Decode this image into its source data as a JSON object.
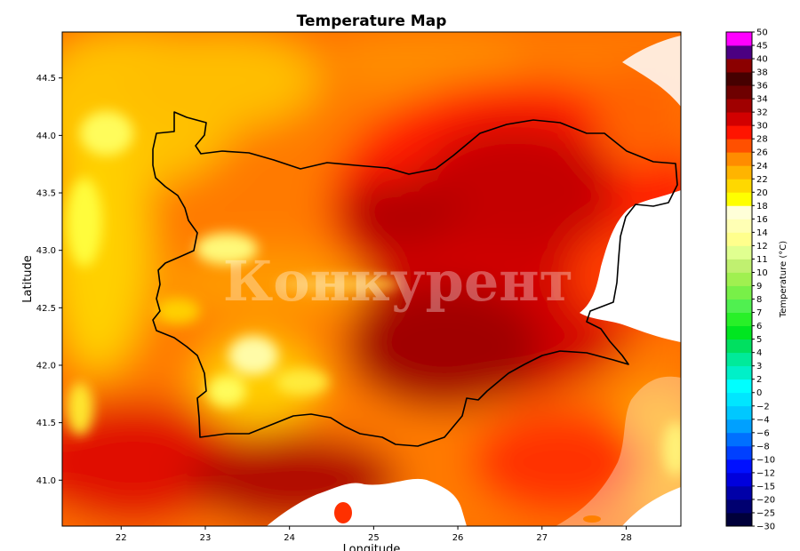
{
  "chart_data": {
    "type": "heatmap",
    "title": "Temperature Map",
    "xlabel": "Longitude",
    "ylabel": "Latitude",
    "xlim": [
      21.3,
      28.65
    ],
    "ylim": [
      40.6,
      44.9
    ],
    "xticks": [
      22,
      23,
      24,
      25,
      26,
      27,
      28
    ],
    "yticks": [
      41.0,
      41.5,
      42.0,
      42.5,
      43.0,
      43.5,
      44.0,
      44.5
    ],
    "colorbar": {
      "label": "Temperature (°C)",
      "levels": [
        -30,
        -25,
        -20,
        -15,
        -12,
        -10,
        -8,
        -6,
        -4,
        -2,
        0,
        2,
        3,
        4,
        5,
        6,
        7,
        8,
        9,
        10,
        11,
        12,
        14,
        16,
        18,
        20,
        22,
        24,
        26,
        28,
        30,
        32,
        34,
        36,
        38,
        40,
        45,
        50
      ],
      "colors": [
        "#00003a",
        "#000070",
        "#0000a8",
        "#0000dc",
        "#0010ff",
        "#0040ff",
        "#0070ff",
        "#00a0ff",
        "#00c8ff",
        "#00e6ff",
        "#00ffff",
        "#00f0c8",
        "#00ea9a",
        "#00e060",
        "#00e620",
        "#28f028",
        "#50f050",
        "#78f048",
        "#a0f050",
        "#c0f070",
        "#e0ff90",
        "#ffff8c",
        "#ffffb4",
        "#ffffd8",
        "#ffff00",
        "#ffd800",
        "#ffb400",
        "#ff8c00",
        "#ff5000",
        "#ff1400",
        "#d20000",
        "#a00000",
        "#6e0000",
        "#460000",
        "#8b0000",
        "#4b0082",
        "#ff00ff"
      ]
    },
    "field": {
      "description_points": [
        {
          "lon": 27.0,
          "lat": 43.4,
          "temp": 33
        },
        {
          "lon": 26.2,
          "lat": 42.4,
          "temp": 35
        },
        {
          "lon": 25.3,
          "lat": 42.6,
          "temp": 31
        },
        {
          "lon": 24.5,
          "lat": 42.2,
          "temp": 28
        },
        {
          "lon": 23.4,
          "lat": 42.6,
          "temp": 19
        },
        {
          "lon": 23.3,
          "lat": 41.8,
          "temp": 16
        },
        {
          "lon": 22.0,
          "lat": 42.5,
          "temp": 22
        },
        {
          "lon": 22.2,
          "lat": 44.6,
          "temp": 21
        },
        {
          "lon": 23.5,
          "lat": 44.2,
          "temp": 23
        },
        {
          "lon": 25.5,
          "lat": 44.5,
          "temp": 27
        },
        {
          "lon": 26.8,
          "lat": 44.5,
          "temp": 31
        },
        {
          "lon": 28.3,
          "lat": 44.3,
          "temp": 25
        },
        {
          "lon": 28.2,
          "lat": 42.6,
          "temp": 28
        },
        {
          "lon": 28.4,
          "lat": 41.2,
          "temp": 21
        },
        {
          "lon": 27.2,
          "lat": 41.3,
          "temp": 29
        },
        {
          "lon": 21.6,
          "lat": 41.0,
          "temp": 27
        }
      ]
    }
  },
  "watermark": "Конкурент"
}
